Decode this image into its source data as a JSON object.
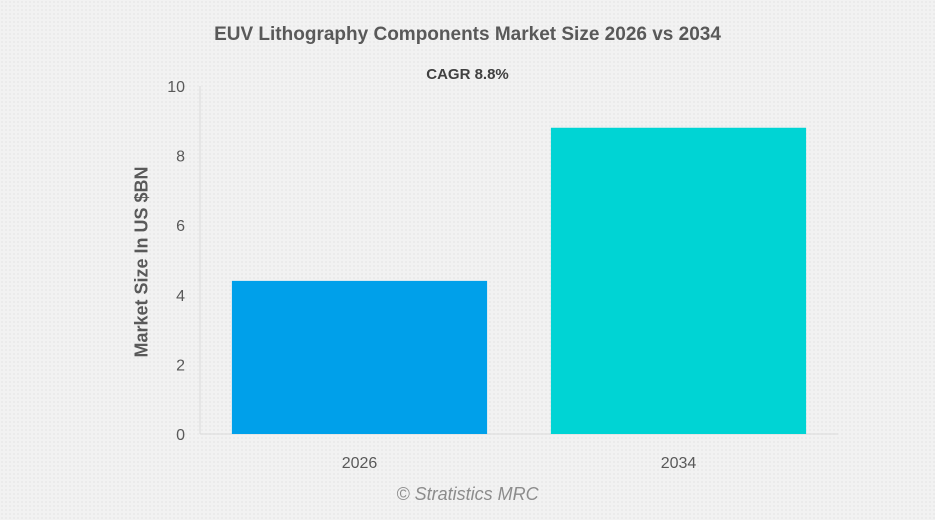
{
  "chart_data": {
    "type": "bar",
    "title": "EUV Lithography Components Market Size 2026 vs 2034",
    "subtitle": "CAGR 8.8%",
    "xlabel": "",
    "ylabel": "Market Size In US $BN",
    "categories": [
      "2026",
      "2034"
    ],
    "values": [
      4.4,
      8.8
    ],
    "ylim": [
      0,
      10
    ],
    "yticks": [
      0,
      2,
      4,
      6,
      8,
      10
    ],
    "bar_colors": [
      "#00a0ea",
      "#00d4d4"
    ],
    "grid": false,
    "legend": "none"
  },
  "watermark": "© Stratistics MRC"
}
